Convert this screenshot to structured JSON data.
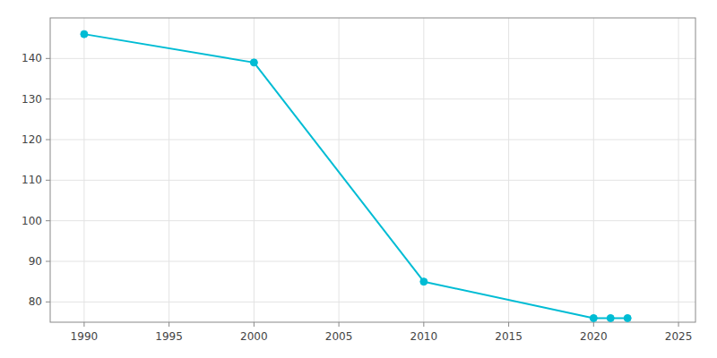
{
  "chart_data": {
    "type": "line",
    "x": [
      1990,
      2000,
      2010,
      2020,
      2021,
      2022
    ],
    "values": [
      146,
      139,
      85,
      76,
      76,
      76
    ],
    "color": "#00BCD4",
    "marker": "circle",
    "xlim": [
      1988,
      2026
    ],
    "ylim": [
      75,
      150
    ],
    "xticks": [
      1990,
      1995,
      2000,
      2005,
      2010,
      2015,
      2020,
      2025
    ],
    "yticks": [
      80,
      90,
      100,
      110,
      120,
      130,
      140
    ],
    "grid": true
  }
}
